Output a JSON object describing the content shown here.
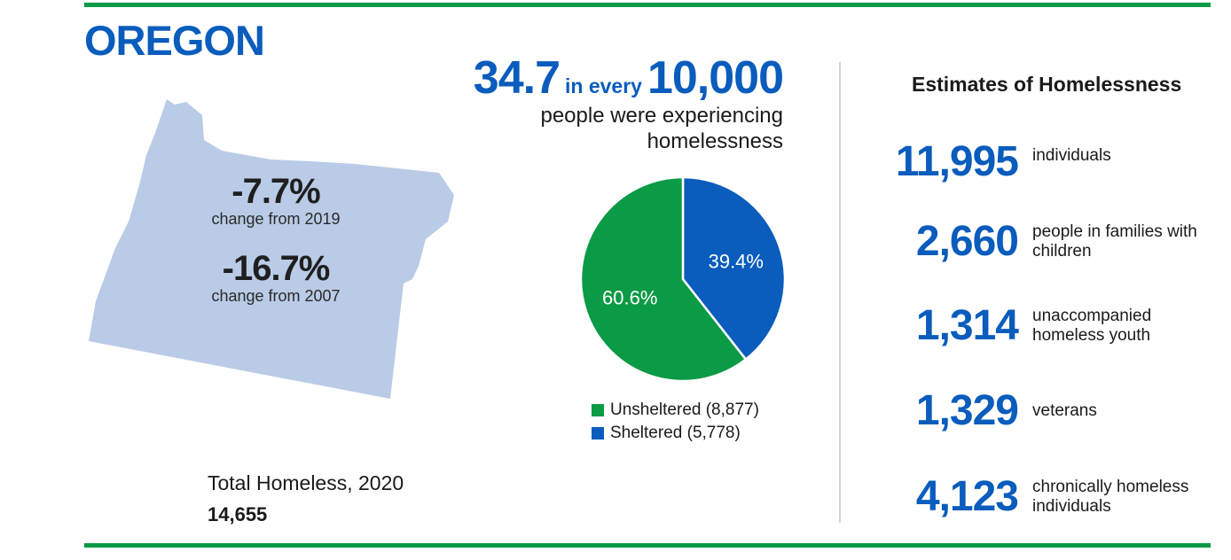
{
  "state": {
    "name": "OREGON"
  },
  "changes": [
    {
      "value": "-7.7%",
      "label": "change from 2019"
    },
    {
      "value": "-16.7%",
      "label": "change from 2007"
    }
  ],
  "total": {
    "label": "Total Homeless, 2020",
    "value": "14,655"
  },
  "rate": {
    "number": "34.7",
    "connector": "in every",
    "base": "10,000",
    "text": "people were experiencing homelessness"
  },
  "estimates": {
    "title": "Estimates of Homelessness",
    "items": [
      {
        "value": "11,995",
        "label": "individuals"
      },
      {
        "value": "2,660",
        "label": "people in families with children"
      },
      {
        "value": "1,314",
        "label": "unaccompanied homeless youth"
      },
      {
        "value": "1,329",
        "label": "veterans"
      },
      {
        "value": "4,123",
        "label": "chronically homeless individuals"
      }
    ]
  },
  "colors": {
    "accent_blue": "#0a5cbd",
    "green": "#0b9a45",
    "map_fill": "#b9cbe6"
  },
  "chart_data": {
    "type": "pie",
    "title": "",
    "slices": [
      {
        "name": "Unsheltered",
        "legend": "Unsheltered (8,877)",
        "value": 8877,
        "percent_label": "60.6%",
        "color": "#0b9a45"
      },
      {
        "name": "Sheltered",
        "legend": "Sheltered (5,778)",
        "value": 5778,
        "percent_label": "39.4%",
        "color": "#0a5cbd"
      }
    ],
    "start": "12 o'clock, clockwise, Sheltered first",
    "legend_position": "bottom"
  }
}
